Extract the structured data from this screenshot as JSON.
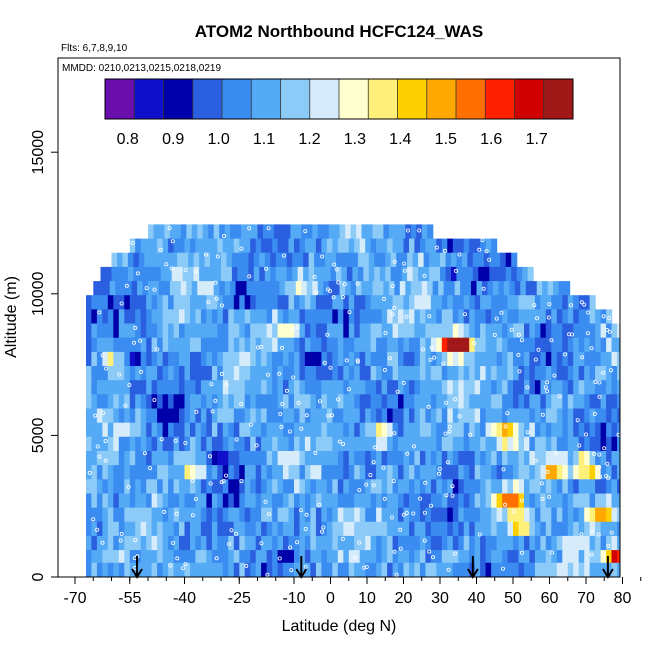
{
  "chart_data": {
    "type": "heatmap",
    "title": "ATOM2 Northbound HCFC124_WAS",
    "subtitle_flights": "Flts: 6,7,8,9,10",
    "subtitle_dates": "MMDD: 0210,0213,0215,0218,0219",
    "xlabel": "Latitude (deg N)",
    "ylabel": "Altitude (m)",
    "xlim": [
      -70,
      85
    ],
    "ylim": [
      0,
      17500
    ],
    "x_tick_labels": [
      "-70",
      "-55",
      "-40",
      "-25",
      "-10",
      "0",
      "10",
      "20",
      "30",
      "40",
      "50",
      "60",
      "70",
      "80"
    ],
    "y_tick_labels": [
      "0",
      "5000",
      "10000",
      "15000"
    ],
    "colorbar": {
      "range": [
        0.75,
        1.78
      ],
      "tick_labels": [
        "0.8",
        "0.9",
        "1.0",
        "1.1",
        "1.2",
        "1.3",
        "1.4",
        "1.5",
        "1.6",
        "1.7"
      ],
      "colors": [
        "#6a0dad",
        "#1010cc",
        "#0000aa",
        "#2a5fe0",
        "#3a8cf0",
        "#55aaf6",
        "#8ccaf8",
        "#d6ecfb",
        "#ffffd0",
        "#fff07a",
        "#ffd000",
        "#ffa800",
        "#ff7000",
        "#ff2000",
        "#d00000",
        "#a01818"
      ]
    },
    "altitude_bands": [
      {
        "alt": 12200,
        "lat_min": -50,
        "lat_max": 27
      },
      {
        "alt": 11700,
        "lat_min": -55,
        "lat_max": 45
      },
      {
        "alt": 11200,
        "lat_min": -60,
        "lat_max": 50
      },
      {
        "alt": 10700,
        "lat_min": -63,
        "lat_max": 55
      },
      {
        "alt": 10200,
        "lat_min": -65,
        "lat_max": 65
      },
      {
        "alt": 9700,
        "lat_min": -67,
        "lat_max": 72
      },
      {
        "alt": 9200,
        "lat_min": -67,
        "lat_max": 77
      },
      {
        "alt": 8700,
        "lat_min": -67,
        "lat_max": 80
      },
      {
        "alt": 8200,
        "lat_min": -67,
        "lat_max": 80
      },
      {
        "alt": 7700,
        "lat_min": -67,
        "lat_max": 80
      },
      {
        "alt": 7200,
        "lat_min": -67,
        "lat_max": 80
      },
      {
        "alt": 6700,
        "lat_min": -67,
        "lat_max": 80
      },
      {
        "alt": 6200,
        "lat_min": -67,
        "lat_max": 80
      },
      {
        "alt": 5700,
        "lat_min": -67,
        "lat_max": 80
      },
      {
        "alt": 5200,
        "lat_min": -67,
        "lat_max": 80
      },
      {
        "alt": 4700,
        "lat_min": -67,
        "lat_max": 80
      },
      {
        "alt": 4200,
        "lat_min": -67,
        "lat_max": 80
      },
      {
        "alt": 3700,
        "lat_min": -67,
        "lat_max": 80
      },
      {
        "alt": 3200,
        "lat_min": -67,
        "lat_max": 80
      },
      {
        "alt": 2700,
        "lat_min": -67,
        "lat_max": 80
      },
      {
        "alt": 2200,
        "lat_min": -67,
        "lat_max": 80
      },
      {
        "alt": 1700,
        "lat_min": -67,
        "lat_max": 80
      },
      {
        "alt": 1200,
        "lat_min": -67,
        "lat_max": 80
      },
      {
        "alt": 700,
        "lat_min": -67,
        "lat_max": 80
      },
      {
        "alt": 250,
        "lat_min": -67,
        "lat_max": 80
      }
    ],
    "hotspots": [
      {
        "lat": 33,
        "alt": 8200,
        "value": 1.7
      },
      {
        "lat": 36,
        "alt": 8200,
        "value": 1.6
      },
      {
        "lat": 14,
        "alt": 5000,
        "value": 1.55
      },
      {
        "lat": 48,
        "alt": 5000,
        "value": 1.5
      },
      {
        "lat": 70,
        "alt": 3900,
        "value": 1.72
      },
      {
        "lat": 61,
        "alt": 3900,
        "value": 1.55
      },
      {
        "lat": 49,
        "alt": 2700,
        "value": 1.55
      },
      {
        "lat": 52,
        "alt": 1900,
        "value": 1.62
      },
      {
        "lat": 75,
        "alt": 2200,
        "value": 1.5
      },
      {
        "lat": 79,
        "alt": 700,
        "value": 1.7
      },
      {
        "lat": -8,
        "alt": 10300,
        "value": 1.38
      },
      {
        "lat": -13,
        "alt": 8800,
        "value": 1.35
      },
      {
        "lat": -60,
        "alt": 7700,
        "value": 1.38
      },
      {
        "lat": -37,
        "alt": 3700,
        "value": 1.38
      },
      {
        "lat": -56,
        "alt": 5200,
        "value": 1.35
      }
    ],
    "coldspots": [
      {
        "lat": -25,
        "alt": 10000,
        "value": 0.85
      },
      {
        "lat": 33,
        "alt": 11900,
        "value": 0.85
      },
      {
        "lat": -54,
        "alt": 7700,
        "value": 0.9
      },
      {
        "lat": -30,
        "alt": 4200,
        "value": 0.9
      },
      {
        "lat": 33,
        "alt": 10800,
        "value": 0.9
      },
      {
        "lat": 48,
        "alt": 3800,
        "value": 0.9
      },
      {
        "lat": -55,
        "alt": 2500,
        "value": 0.95
      }
    ],
    "sounding_arrows_lat": [
      -53,
      -8,
      39,
      76
    ]
  }
}
